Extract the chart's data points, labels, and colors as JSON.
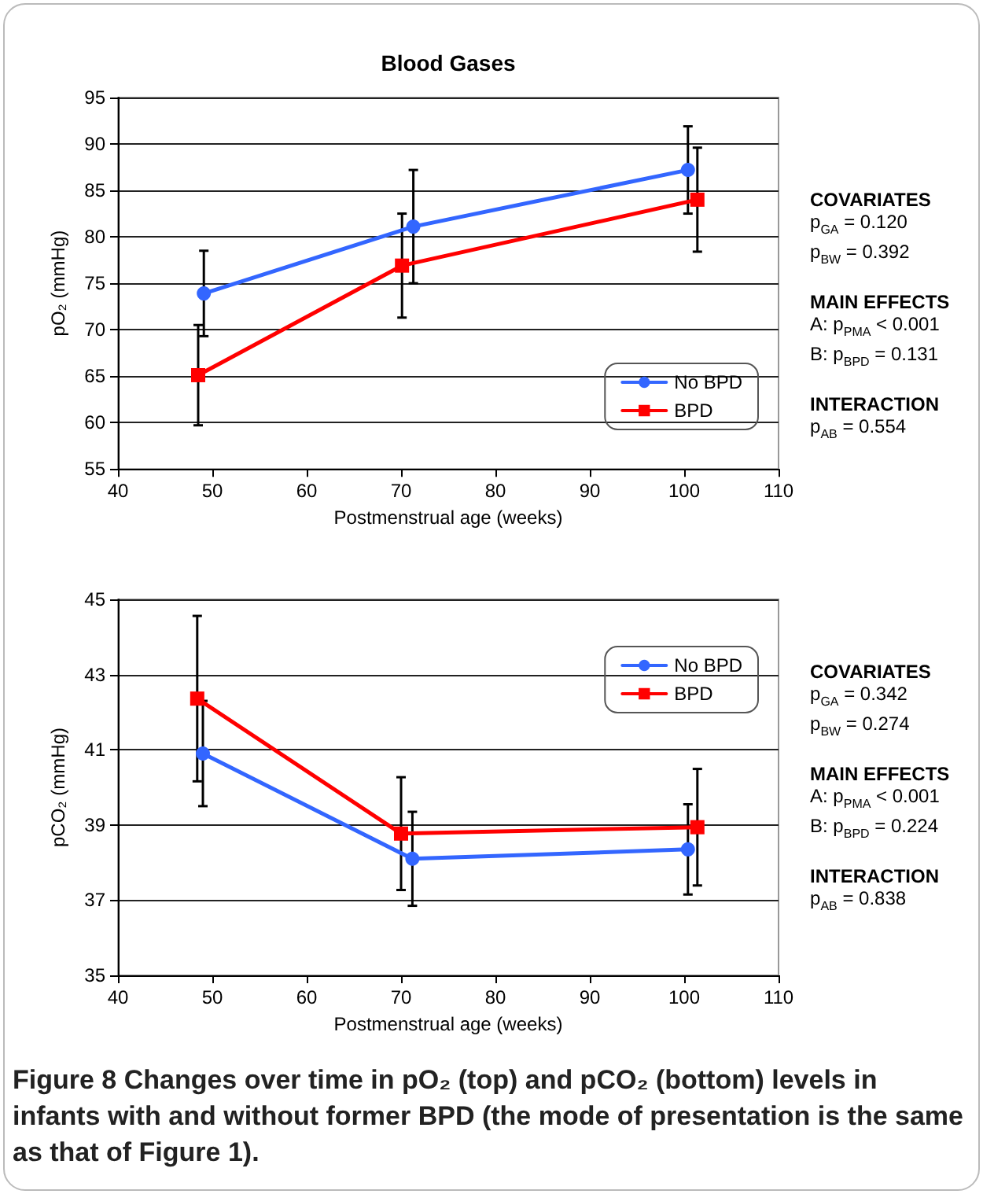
{
  "chart_data": [
    {
      "type": "line",
      "title": "Blood Gases",
      "xlabel": "Postmenstrual age (weeks)",
      "ylabel": "pO₂ (mmHg)",
      "xlim": [
        40,
        110
      ],
      "xticks": [
        40,
        50,
        60,
        70,
        80,
        90,
        100,
        110
      ],
      "ylim": [
        55,
        95
      ],
      "yticks": [
        55,
        60,
        65,
        70,
        75,
        80,
        85,
        90,
        95
      ],
      "grid": "y",
      "legend": "bottom right",
      "line_style": "solid",
      "series": [
        {
          "name": "No BPD",
          "color": "#3366ff",
          "marker": "circle",
          "x": [
            49.1,
            71.3,
            100.4
          ],
          "values": [
            73.9,
            81.1,
            87.2
          ],
          "errors": [
            4.6,
            6.1,
            4.7
          ]
        },
        {
          "name": "BPD",
          "color": "#ff0000",
          "marker": "square",
          "x": [
            48.5,
            70.1,
            101.4
          ],
          "values": [
            65.1,
            76.9,
            84.0
          ],
          "errors": [
            5.4,
            5.6,
            5.6
          ]
        }
      ],
      "annotations": [
        "COVARIATES",
        "p$_{GA}$ = 0.120",
        "p$_{BW}$ = 0.392",
        "MAIN EFFECTS",
        "A: p$_{PMA}$ < 0.001",
        "B: p$_{BPD}$ = 0.131",
        "INTERACTION",
        "p$_{AB}$ = 0.554"
      ]
    },
    {
      "type": "line",
      "xlabel": "Postmenstrual age (weeks)",
      "ylabel": "pCO₂ (mmHg)",
      "xlim": [
        40,
        110
      ],
      "xticks": [
        40,
        50,
        60,
        70,
        80,
        90,
        100,
        110
      ],
      "ylim": [
        35,
        45
      ],
      "yticks": [
        35,
        37,
        39,
        41,
        43,
        45
      ],
      "grid": "y",
      "legend": "top right",
      "line_style": "solid",
      "series": [
        {
          "name": "No BPD",
          "color": "#3366ff",
          "marker": "circle",
          "x": [
            49.0,
            71.2,
            100.4
          ],
          "values": [
            40.9,
            38.1,
            38.35
          ],
          "errors": [
            1.4,
            1.25,
            1.2
          ]
        },
        {
          "name": "BPD",
          "color": "#ff0000",
          "marker": "square",
          "x": [
            48.4,
            70.0,
            101.4
          ],
          "values": [
            42.36,
            38.77,
            38.94
          ],
          "errors": [
            2.2,
            1.5,
            1.55
          ]
        }
      ],
      "annotations": [
        "COVARIATES",
        "p$_{GA}$ = 0.342",
        "p$_{BW}$ = 0.274",
        "MAIN EFFECTS",
        "A: p$_{PMA}$ < 0.001",
        "B: p$_{BPD}$ = 0.224",
        "INTERACTION",
        "p$_{AB}$ = 0.838",
        "Figure 8 Changes over time in pO₂ (top) and pCO₂ (bottom) levels in infants with and without former BPD (the mode of presentation is the same as that of Figure 1)."
      ]
    }
  ]
}
